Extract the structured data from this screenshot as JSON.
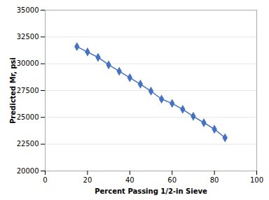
{
  "chart_data": {
    "type": "line",
    "x": [
      15,
      20,
      25,
      30,
      35,
      40,
      45,
      50,
      55,
      60,
      65,
      70,
      75,
      80,
      85
    ],
    "values": [
      31600,
      31100,
      30600,
      29900,
      29300,
      28700,
      28100,
      27450,
      26700,
      26300,
      25750,
      25100,
      24500,
      23900,
      23100
    ],
    "color": "#4472C4",
    "marker": "diamond",
    "xlim": [
      0,
      100
    ],
    "ylim": [
      20000,
      35000
    ],
    "xticks": [
      0,
      20,
      40,
      60,
      80,
      100
    ],
    "yticks": [
      20000,
      22500,
      25000,
      27500,
      30000,
      32500,
      35000
    ],
    "xlabel": "Percent Passing 1/2-in Sieve",
    "ylabel": "Predicted Mr, psi",
    "grid": "y"
  }
}
